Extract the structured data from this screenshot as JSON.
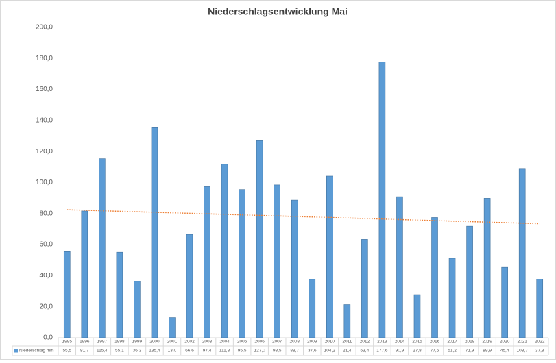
{
  "chart_data": {
    "type": "bar",
    "title": "Niederschlagsentwicklung Mai",
    "categories": [
      "1995",
      "1996",
      "1997",
      "1998",
      "1999",
      "2000",
      "2001",
      "2002",
      "2003",
      "2004",
      "2005",
      "2006",
      "2007",
      "2008",
      "2009",
      "2010",
      "2011",
      "2012",
      "2013",
      "2014",
      "2015",
      "2016",
      "2017",
      "2018",
      "2019",
      "2020",
      "2021",
      "2022"
    ],
    "series": [
      {
        "name": "Niederschlag mm",
        "color": "#5b9bd5",
        "values": [
          55.5,
          81.7,
          115.4,
          55.1,
          36.3,
          135.4,
          13.0,
          66.6,
          97.4,
          111.8,
          95.5,
          127.0,
          98.5,
          88.7,
          37.6,
          104.2,
          21.4,
          63.4,
          177.6,
          90.9,
          27.8,
          77.5,
          51.2,
          71.9,
          89.9,
          45.4,
          108.7,
          37.8
        ],
        "value_labels": [
          "55,5",
          "81,7",
          "115,4",
          "55,1",
          "36,3",
          "135,4",
          "13,0",
          "66,6",
          "97,4",
          "111,8",
          "95,5",
          "127,0",
          "98,5",
          "88,7",
          "37,6",
          "104,2",
          "21,4",
          "63,4",
          "177,6",
          "90,9",
          "27,8",
          "77,5",
          "51,2",
          "71,9",
          "89,9",
          "45,4",
          "108,7",
          "37,8"
        ]
      }
    ],
    "trendline": {
      "values": [
        82.5,
        73.5
      ],
      "color": "#ed7d31"
    },
    "ylim": [
      0,
      200
    ],
    "yticks": [
      {
        "value": 0,
        "label": "0,0"
      },
      {
        "value": 20,
        "label": "20,0"
      },
      {
        "value": 40,
        "label": "40,0"
      },
      {
        "value": 60,
        "label": "60,0"
      },
      {
        "value": 80,
        "label": "80,0"
      },
      {
        "value": 100,
        "label": "100,0"
      },
      {
        "value": 120,
        "label": "120,0"
      },
      {
        "value": 140,
        "label": "140,0"
      },
      {
        "value": 160,
        "label": "160,0"
      },
      {
        "value": 180,
        "label": "180,0"
      },
      {
        "value": 200,
        "label": "200,0"
      }
    ],
    "grid": false
  }
}
